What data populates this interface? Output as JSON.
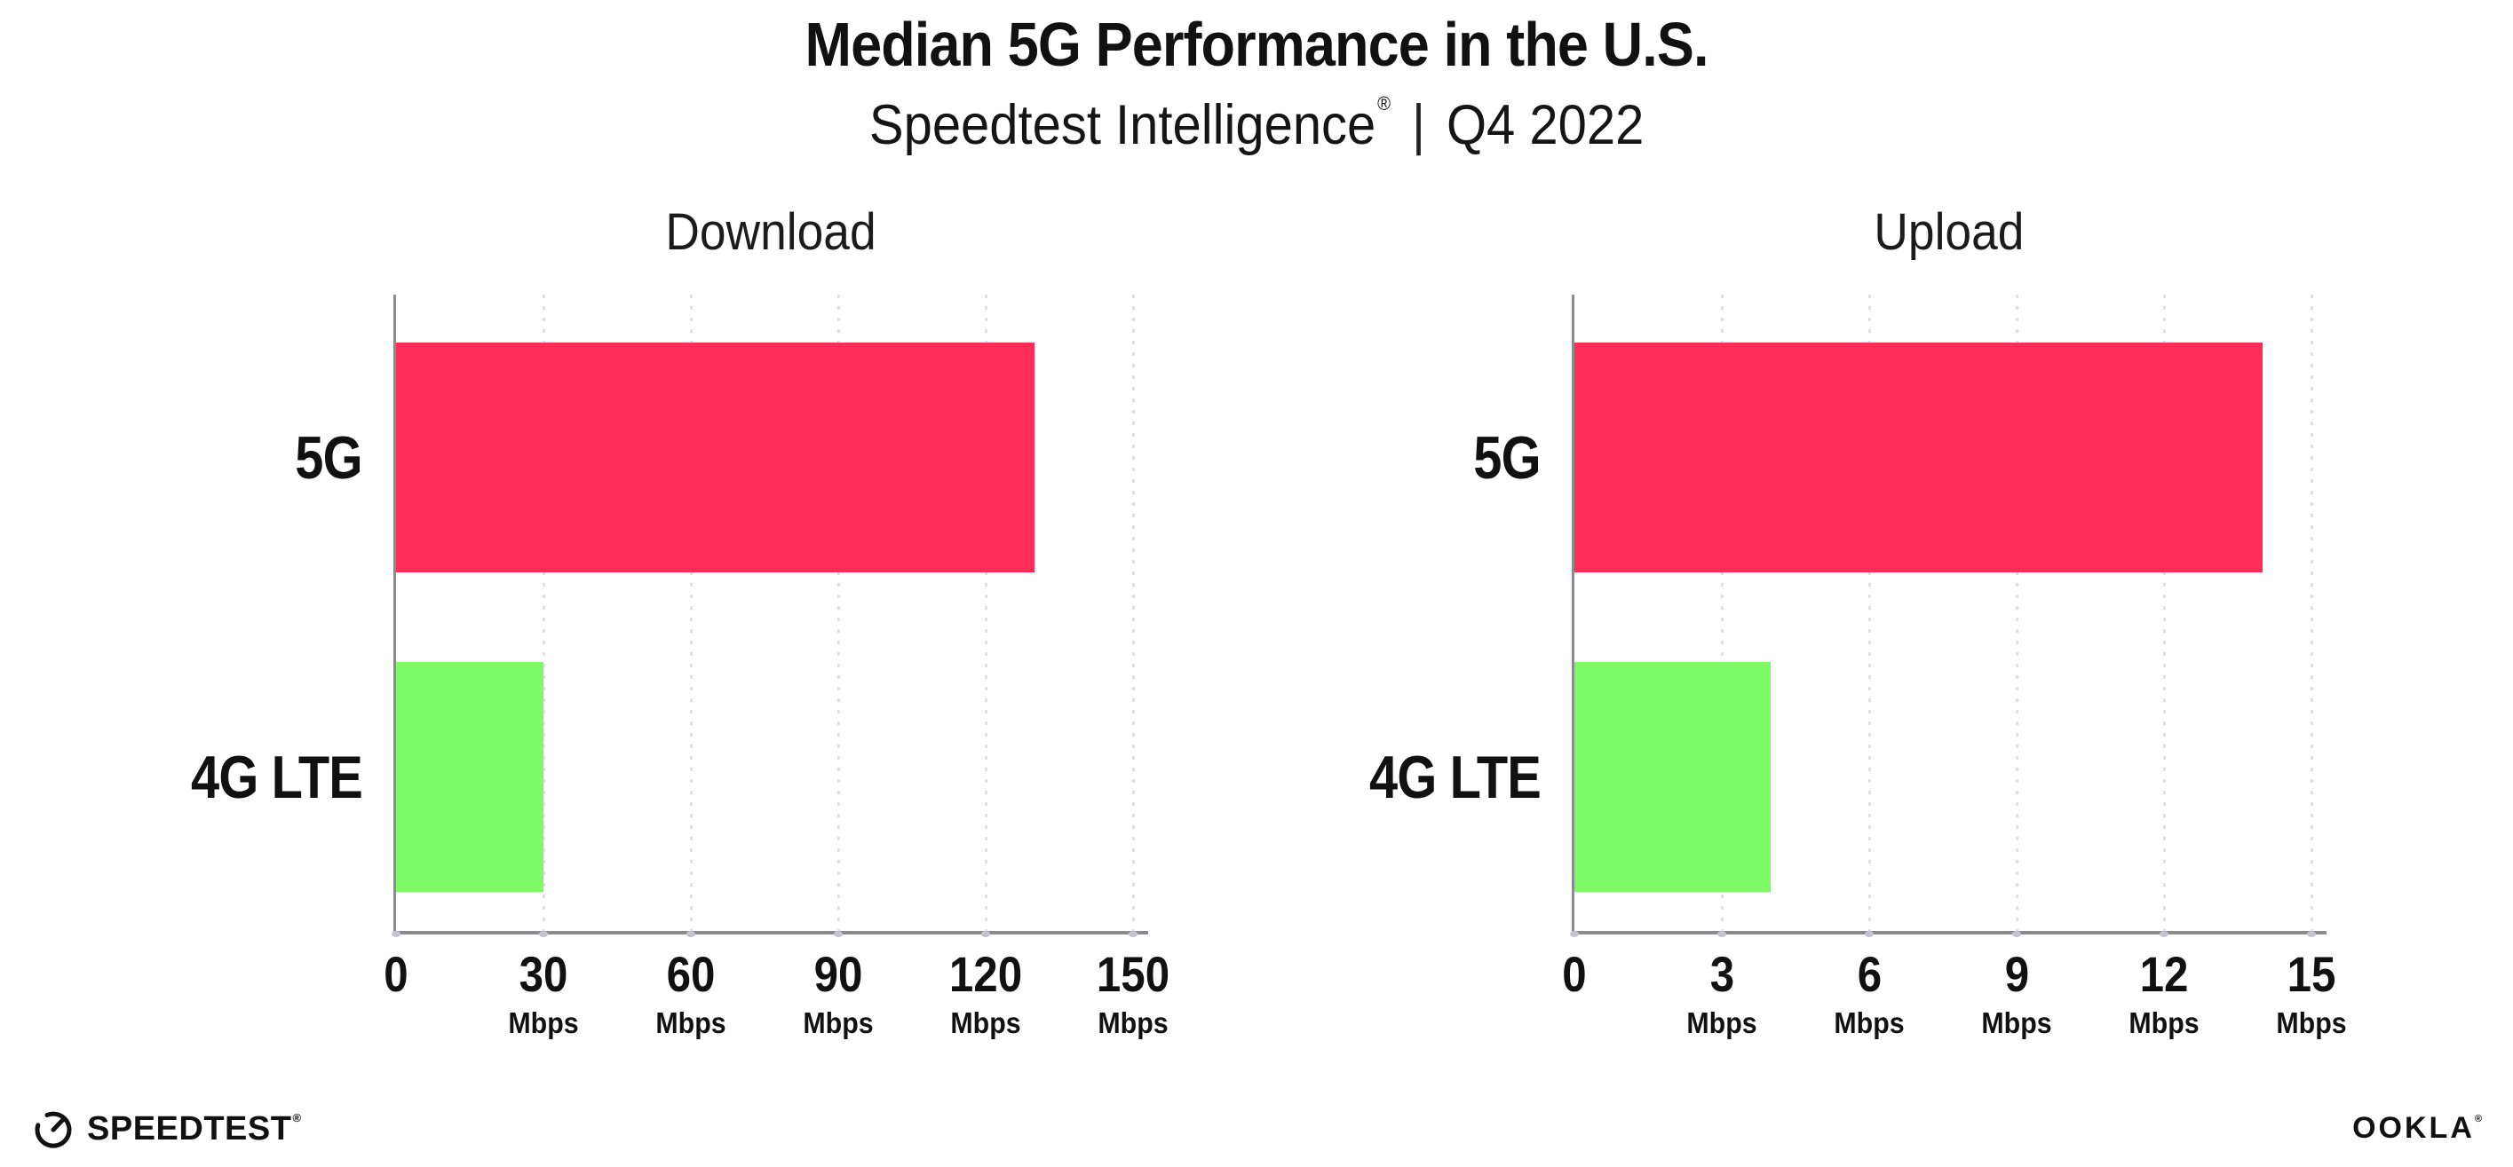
{
  "header": {
    "title": "Median 5G Performance in the U.S.",
    "subtitle_brand": "Speedtest Intelligence",
    "subtitle_reg": "®",
    "subtitle_sep": "|",
    "subtitle_period": "Q4 2022"
  },
  "chart_data": [
    {
      "type": "bar",
      "orientation": "horizontal",
      "title": "Download",
      "categories": [
        "5G",
        "4G LTE"
      ],
      "values": [
        130,
        30
      ],
      "unit": "Mbps",
      "xlim": [
        0,
        150
      ],
      "xticks": [
        0,
        30,
        60,
        90,
        120,
        150
      ],
      "grid": "vertical-dotted",
      "legend": "none"
    },
    {
      "type": "bar",
      "orientation": "horizontal",
      "title": "Upload",
      "categories": [
        "5G",
        "4G LTE"
      ],
      "values": [
        14,
        4
      ],
      "unit": "Mbps",
      "xlim": [
        0,
        15
      ],
      "xticks": [
        0,
        3,
        6,
        9,
        12,
        15
      ],
      "grid": "vertical-dotted",
      "legend": "none"
    }
  ],
  "colors": {
    "bar_5g": "#ff2e58",
    "bar_4g_lte": "#7efa66",
    "axis": "#8a8a8f",
    "gridline": "#dfe0ea",
    "text": "#111111"
  },
  "footer": {
    "speedtest_label": "SPEEDTEST",
    "speedtest_reg": "®",
    "ookla_label": "OOKLA",
    "ookla_reg": "®"
  }
}
